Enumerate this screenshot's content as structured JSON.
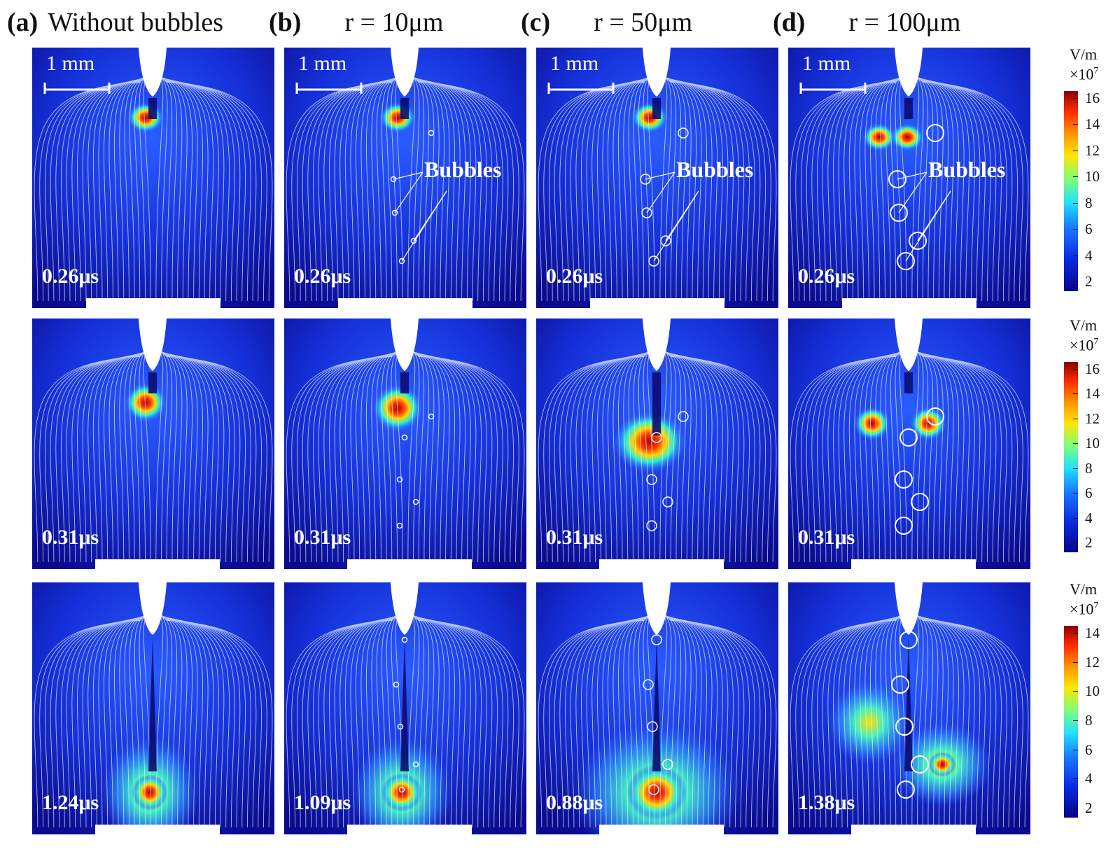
{
  "columns": [
    {
      "letter": "(a)",
      "title": "Without bubbles",
      "bubble_scale": 0
    },
    {
      "letter": "(b)",
      "title": "r = 10μm",
      "bubble_scale": 1
    },
    {
      "letter": "(c)",
      "title": "r = 50μm",
      "bubble_scale": 2
    },
    {
      "letter": "(d)",
      "title": "r = 100μm",
      "bubble_scale": 3
    }
  ],
  "rows": [
    {
      "times": [
        "0.26μs",
        "0.26μs",
        "0.26μs",
        "0.26μs"
      ]
    },
    {
      "times": [
        "0.31μs",
        "0.31μs",
        "0.31μs",
        "0.31μs"
      ]
    },
    {
      "times": [
        "1.24μs",
        "1.09μs",
        "0.88μs",
        "1.38μs"
      ]
    }
  ],
  "scale_bar_label": "1 mm",
  "bubbles_label": "Bubbles",
  "colorbars": [
    {
      "unit_line1": "V/m",
      "unit_line2": "×10",
      "exponent": "7",
      "ticks": [
        "16",
        "14",
        "12",
        "10",
        "8",
        "6",
        "4",
        "2"
      ]
    },
    {
      "unit_line1": "V/m",
      "unit_line2": "×10",
      "exponent": "7",
      "ticks": [
        "16",
        "14",
        "12",
        "10",
        "8",
        "6",
        "4",
        "2"
      ]
    },
    {
      "unit_line1": "V/m",
      "unit_line2": "×10",
      "exponent": "7",
      "ticks": [
        "14",
        "12",
        "10",
        "8",
        "6",
        "4",
        "2"
      ]
    }
  ],
  "colors": {
    "field_low": "#0a0a8c",
    "field_mid": "#1f6bff",
    "field_high": "#d61a00",
    "field_line": "#e8f0ff"
  }
}
